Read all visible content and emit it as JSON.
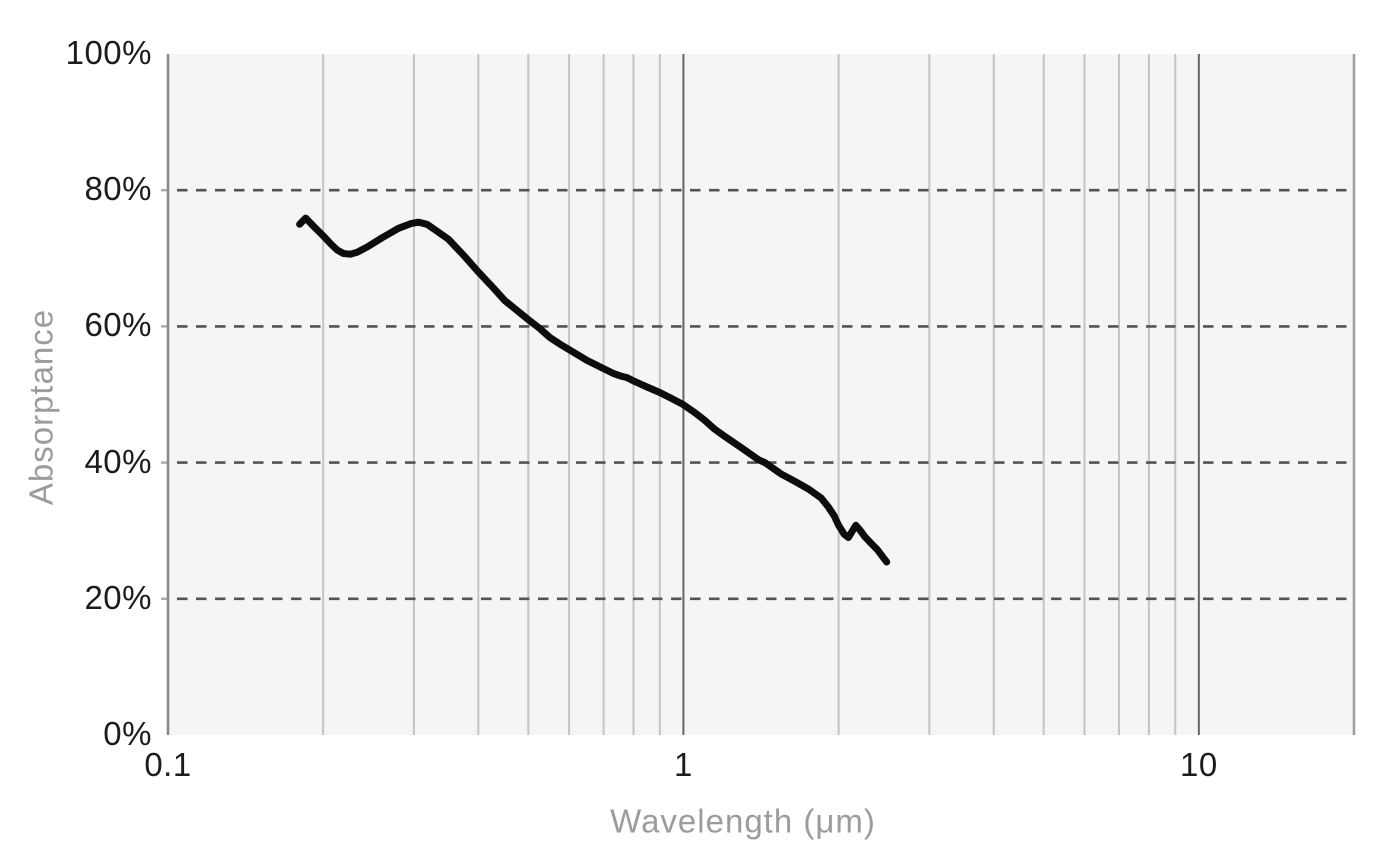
{
  "chart_data": {
    "type": "line",
    "title": "",
    "xlabel": "Wavelength (μm)",
    "ylabel": "Absorptance",
    "x_scale": "log",
    "x_range": [
      0.1,
      20
    ],
    "y_range": [
      0,
      100
    ],
    "grid": true,
    "legend_position": "none",
    "x_ticks": [
      {
        "value": 0.1,
        "label": "0.1"
      },
      {
        "value": 1,
        "label": "1"
      },
      {
        "value": 10,
        "label": "10"
      }
    ],
    "y_ticks": [
      {
        "value": 0,
        "label": "0%"
      },
      {
        "value": 20,
        "label": "20%"
      },
      {
        "value": 40,
        "label": "40%"
      },
      {
        "value": 60,
        "label": "60%"
      },
      {
        "value": 80,
        "label": "80%"
      },
      {
        "value": 100,
        "label": "100%"
      }
    ],
    "minor_gridlines_x": [
      0.2,
      0.3,
      0.4,
      0.5,
      0.6,
      0.7,
      0.8,
      0.9,
      2,
      3,
      4,
      5,
      6,
      7,
      8,
      9
    ],
    "major_gridlines_x": [
      1,
      10
    ],
    "right_boundary_x": 20,
    "dashed_gridlines_y": [
      20,
      40,
      60,
      80
    ],
    "series": [
      {
        "name": "absorptance-curve",
        "points": [
          [
            0.18,
            75.0
          ],
          [
            0.185,
            75.9
          ],
          [
            0.191,
            74.8
          ],
          [
            0.2,
            73.3
          ],
          [
            0.207,
            72.1
          ],
          [
            0.213,
            71.2
          ],
          [
            0.219,
            70.7
          ],
          [
            0.226,
            70.6
          ],
          [
            0.233,
            70.9
          ],
          [
            0.244,
            71.7
          ],
          [
            0.26,
            73.0
          ],
          [
            0.28,
            74.4
          ],
          [
            0.296,
            75.1
          ],
          [
            0.306,
            75.3
          ],
          [
            0.318,
            75.0
          ],
          [
            0.331,
            74.1
          ],
          [
            0.35,
            72.8
          ],
          [
            0.375,
            70.4
          ],
          [
            0.4,
            68.0
          ],
          [
            0.426,
            65.8
          ],
          [
            0.45,
            63.8
          ],
          [
            0.476,
            62.3
          ],
          [
            0.5,
            61.0
          ],
          [
            0.526,
            59.7
          ],
          [
            0.55,
            58.4
          ],
          [
            0.576,
            57.4
          ],
          [
            0.6,
            56.6
          ],
          [
            0.65,
            55.0
          ],
          [
            0.7,
            53.8
          ],
          [
            0.731,
            53.1
          ],
          [
            0.756,
            52.7
          ],
          [
            0.776,
            52.5
          ],
          [
            0.8,
            52.0
          ],
          [
            0.85,
            51.1
          ],
          [
            0.9,
            50.3
          ],
          [
            0.95,
            49.4
          ],
          [
            1.0,
            48.5
          ],
          [
            1.05,
            47.4
          ],
          [
            1.1,
            46.2
          ],
          [
            1.15,
            44.9
          ],
          [
            1.2,
            43.9
          ],
          [
            1.3,
            42.1
          ],
          [
            1.4,
            40.4
          ],
          [
            1.44,
            40.0
          ],
          [
            1.55,
            38.3
          ],
          [
            1.65,
            37.2
          ],
          [
            1.75,
            36.1
          ],
          [
            1.85,
            34.8
          ],
          [
            1.91,
            33.5
          ],
          [
            1.96,
            32.2
          ],
          [
            2.0,
            30.8
          ],
          [
            2.05,
            29.5
          ],
          [
            2.09,
            29.0
          ],
          [
            2.125,
            29.9
          ],
          [
            2.16,
            30.8
          ],
          [
            2.2,
            30.1
          ],
          [
            2.25,
            29.1
          ],
          [
            2.31,
            28.2
          ],
          [
            2.38,
            27.2
          ],
          [
            2.44,
            26.1
          ],
          [
            2.48,
            25.4
          ]
        ]
      }
    ]
  },
  "colors": {
    "page_background": "#ffffff",
    "plot_background": "#f5f5f5",
    "minor_gridline": "#c4c4c4",
    "major_gridline": "#666666",
    "right_boundary": "#9e9e9e",
    "y_axis_line": "#8a8a8a",
    "y_axis_tick": "#ababab",
    "dashed_gridline": "#545454",
    "curve": "#0d0d0d",
    "tick_label": "#1c1c1c",
    "axis_title": "#9c9c9c"
  }
}
